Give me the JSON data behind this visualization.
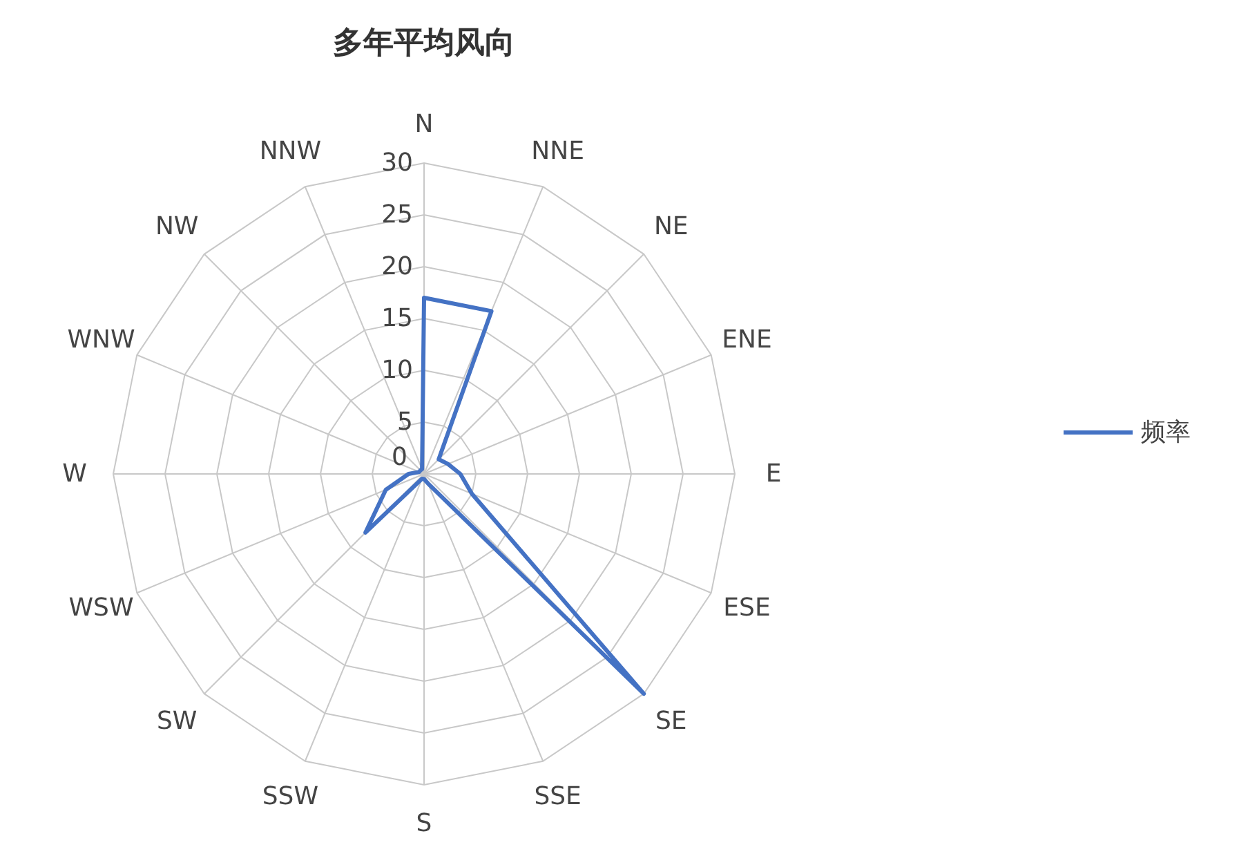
{
  "chart_data": {
    "type": "radar",
    "title": "多年平均风向",
    "categories": [
      "N",
      "NNE",
      "NE",
      "ENE",
      "E",
      "ESE",
      "SE",
      "SSE",
      "S",
      "SSW",
      "SW",
      "WSW",
      "W",
      "WNW",
      "NW",
      "NNW"
    ],
    "series": [
      {
        "name": "频率",
        "color": "#4472c4",
        "values": [
          17,
          17,
          2,
          2.5,
          3.5,
          5,
          30,
          1,
          0.5,
          0.5,
          8,
          4,
          1.5,
          0.5,
          0.5,
          0.5
        ]
      }
    ],
    "ylim": [
      0,
      30
    ],
    "yticks": [
      0,
      5,
      10,
      15,
      20,
      25,
      30
    ],
    "grid": true,
    "legend": "right",
    "line_style": "solid"
  }
}
